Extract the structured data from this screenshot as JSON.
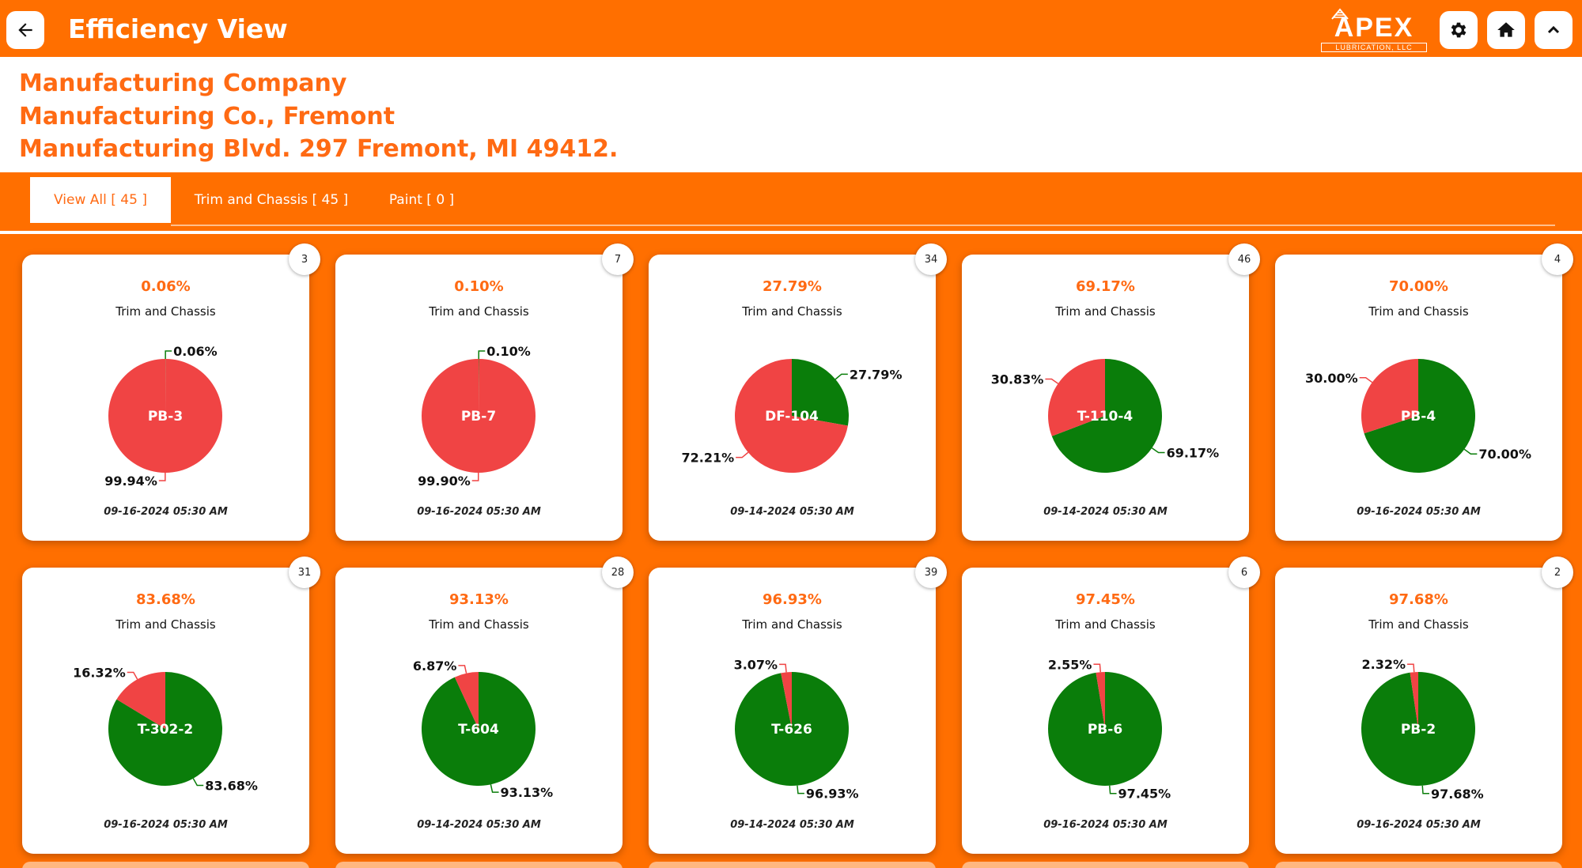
{
  "header": {
    "title": "Efficiency View",
    "logo_main": "APEX",
    "logo_sub": "LUBRICATION, LLC",
    "back_icon": "arrow-left-icon",
    "settings_icon": "gear-icon",
    "home_icon": "home-icon",
    "collapse_icon": "chevron-up-icon"
  },
  "company": {
    "line1": "Manufacturing Company",
    "line2": "Manufacturing Co., Fremont",
    "line3": "Manufacturing Blvd. 297 Fremont, MI 49412."
  },
  "tabs": [
    {
      "label": "View All [ 45 ]",
      "active": true
    },
    {
      "label": "Trim and Chassis [ 45 ]",
      "active": false
    },
    {
      "label": "Paint [ 0 ]",
      "active": false
    }
  ],
  "colors": {
    "accent": "#ff6f00",
    "good": "#0a7d0a",
    "bad": "#f04444"
  },
  "chart_data": [
    {
      "type": "pie",
      "badge": "3",
      "title": "0.06%",
      "subtitle": "Trim and Chassis",
      "label": "PB-3",
      "values": [
        0.06,
        99.94
      ],
      "labels": [
        "0.06%",
        "99.94%"
      ],
      "date": "09-16-2024  05:30 AM"
    },
    {
      "type": "pie",
      "badge": "7",
      "title": "0.10%",
      "subtitle": "Trim and Chassis",
      "label": "PB-7",
      "values": [
        0.1,
        99.9
      ],
      "labels": [
        "0.10%",
        "99.90%"
      ],
      "date": "09-16-2024  05:30 AM"
    },
    {
      "type": "pie",
      "badge": "34",
      "title": "27.79%",
      "subtitle": "Trim and Chassis",
      "label": "DF-104",
      "values": [
        27.79,
        72.21
      ],
      "labels": [
        "27.79%",
        "72.21%"
      ],
      "date": "09-14-2024  05:30 AM"
    },
    {
      "type": "pie",
      "badge": "46",
      "title": "69.17%",
      "subtitle": "Trim and Chassis",
      "label": "T-110-4",
      "values": [
        69.17,
        30.83
      ],
      "labels": [
        "69.17%",
        "30.83%"
      ],
      "date": "09-14-2024  05:30 AM"
    },
    {
      "type": "pie",
      "badge": "4",
      "title": "70.00%",
      "subtitle": "Trim and Chassis",
      "label": "PB-4",
      "values": [
        70.0,
        30.0
      ],
      "labels": [
        "70.00%",
        "30.00%"
      ],
      "date": "09-16-2024  05:30 AM"
    },
    {
      "type": "pie",
      "badge": "31",
      "title": "83.68%",
      "subtitle": "Trim and Chassis",
      "label": "T-302-2",
      "values": [
        83.68,
        16.32
      ],
      "labels": [
        "83.68%",
        "16.32%"
      ],
      "date": "09-16-2024  05:30 AM"
    },
    {
      "type": "pie",
      "badge": "28",
      "title": "93.13%",
      "subtitle": "Trim and Chassis",
      "label": "T-604",
      "values": [
        93.13,
        6.87
      ],
      "labels": [
        "93.13%",
        "6.87%"
      ],
      "date": "09-14-2024  05:30 AM"
    },
    {
      "type": "pie",
      "badge": "39",
      "title": "96.93%",
      "subtitle": "Trim and Chassis",
      "label": "T-626",
      "values": [
        96.93,
        3.07
      ],
      "labels": [
        "96.93%",
        "3.07%"
      ],
      "date": "09-14-2024  05:30 AM"
    },
    {
      "type": "pie",
      "badge": "6",
      "title": "97.45%",
      "subtitle": "Trim and Chassis",
      "label": "PB-6",
      "values": [
        97.45,
        2.55
      ],
      "labels": [
        "97.45%",
        "2.55%"
      ],
      "date": "09-16-2024  05:30 AM"
    },
    {
      "type": "pie",
      "badge": "2",
      "title": "97.68%",
      "subtitle": "Trim and Chassis",
      "label": "PB-2",
      "values": [
        97.68,
        2.32
      ],
      "labels": [
        "97.68%",
        "2.32%"
      ],
      "date": "09-16-2024  05:30 AM"
    }
  ]
}
